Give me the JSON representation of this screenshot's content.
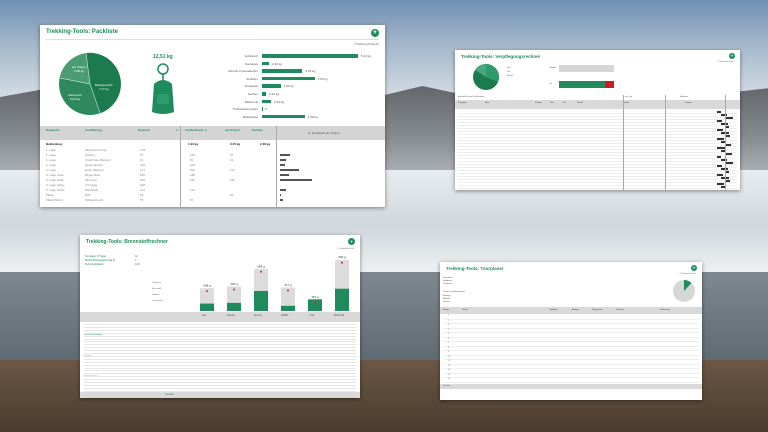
{
  "packliste": {
    "title": "Trekking-Tools: Packliste",
    "credit": "©TrekkingTrails.de",
    "total": "12,51 kg",
    "pie": [
      {
        "label": "Basisgewicht",
        "value": "7,17 kg"
      },
      {
        "label": "Verbrauch",
        "value": "5,34 kg"
      },
      {
        "label": "am Körper",
        "value": "2,59 kg"
      }
    ],
    "bars": [
      {
        "label": "Verbrauch",
        "value": "5,34 kg",
        "kg": 5.34
      },
      {
        "label": "Sonstiges",
        "value": "0,40 kg",
        "kg": 0.4
      },
      {
        "label": "Schuhe & Gamaschen",
        "value": "2,25 kg",
        "kg": 2.25
      },
      {
        "label": "Schlafen",
        "value": "2,93 kg",
        "kg": 2.93
      },
      {
        "label": "Rucksack",
        "value": "1,03 kg",
        "kg": 1.03
      },
      {
        "label": "Kochen",
        "value": "0,23 kg",
        "kg": 0.23
      },
      {
        "label": "Elektronik",
        "value": "0,51 kg",
        "kg": 0.51
      },
      {
        "label": "Trinkwassersystem",
        "value": "0",
        "kg": 0
      },
      {
        "label": "Bekleidung",
        "value": "2,38 kg",
        "kg": 2.38
      }
    ],
    "columns": [
      "Kategorie",
      "Ausführung",
      "Gewicht",
      "#",
      "im Rucksack",
      "#",
      "am Körper",
      "Summe"
    ],
    "category": "Bekleidung",
    "category_totals": [
      "1,93 kg",
      "0,45 kg",
      "2,38 kg"
    ],
    "legend": "im Rucksack  am Körper",
    "rows": [
      {
        "k": "1. Lage",
        "a": "Merinoshirt lang",
        "g": "178"
      },
      {
        "k": "1. Lage",
        "a": "Socken",
        "g": "67",
        "r": "134",
        "b": "67"
      },
      {
        "k": "1. Lage",
        "a": "Unterhose (Merino)",
        "g": "41",
        "r": "82",
        "b": "41"
      },
      {
        "k": "2. Lage",
        "a": "Daunenjacke",
        "g": "100",
        "r": "100"
      },
      {
        "k": "2. Lage",
        "a": "Hose (Merino)",
        "g": "127",
        "r": "254",
        "b": "127"
      },
      {
        "k": "3. Lage Hose",
        "a": "Regenhose",
        "g": "186",
        "r": "186"
      },
      {
        "k": "3. Lage Hose",
        "a": "Zip-Hose",
        "g": "320",
        "r": "320",
        "b": "320"
      },
      {
        "k": "3. Lage Jacke",
        "a": "2,5 Lagig",
        "g": "228"
      },
      {
        "k": "3. Lage Jacke",
        "a": "Windshell",
        "g": "114",
        "r": "114"
      },
      {
        "k": "Mütze",
        "a": "Buff",
        "g": "26",
        "b": "26"
      },
      {
        "k": "Mütze/Schal",
        "a": "Schlauchtuch",
        "g": "57",
        "r": "57"
      }
    ]
  },
  "verpflegung": {
    "title": "Trekking-Tools: Verpflegungsrechner",
    "credit": "©TrekkingTrails.de",
    "legend": [
      "Fett",
      "KH",
      "Eiweiß"
    ],
    "bar_labels": [
      "Bedarf",
      "Ist"
    ],
    "bar_ist_fraction": 0.85,
    "section_left": "Auswahl für eine Trekkingtour",
    "section_mid": "pro Tour",
    "section_right": "Ergebnis",
    "columns": [
      "Kategorie",
      "Wert",
      "Energie",
      "Fett",
      "KH",
      "Eiweiß",
      "Anzahl",
      "Summe"
    ]
  },
  "brennstoff": {
    "title": "Trekking-Tools: Brennstoffrechner",
    "credit": "©TrekkingTrails.de",
    "params": [
      {
        "label": "Tourdauer (# Tage)",
        "value": "10"
      },
      {
        "label": "Bedarf Warmwasser/Tag (l)",
        "value": "2"
      },
      {
        "label": "Sicherheitsfaktor",
        "value": "10%"
      }
    ],
    "legend": [
      "Verbrauch",
      "Brennstoff",
      "Gewicht",
      "Leergewicht"
    ],
    "row_groups": [
      "Brennstoffbedarf",
      "Kocher",
      "Kochsystem"
    ],
    "total_label": "Gesamt",
    "chart_data": {
      "type": "bar",
      "categories": [
        "Gas",
        "Spiritus",
        "Benzin",
        "ESBIT",
        "Holz",
        "Mehrstoff"
      ],
      "series": [
        {
          "values": [
            100,
            110,
            270,
            70,
            157,
            300
          ]
        },
        {
          "values": [
            208,
            220,
            298,
            247,
            0,
            390
          ]
        }
      ],
      "total_labels": [
        "308 g",
        "330 g",
        "568 g",
        "317 g",
        "157 g",
        "690 g"
      ]
    }
  },
  "tourplaner": {
    "title": "Trekking-Tools: Tourplaner",
    "credit": "©TrekkingTrails.de",
    "left_labels": [
      "Startdatum",
      "Enddatum",
      "Tourdauer"
    ],
    "section": "Distanz und Höhenmeter",
    "stats": [
      "Aufstieg",
      "Abstieg",
      "Distanz"
    ],
    "columns": [
      "Etappe",
      "Zielort",
      "Aufstieg",
      "Abstieg",
      "Wegstrecke",
      "Zeitraum",
      "Kommentar"
    ],
    "total_label": "Gesamt",
    "pie_fraction": 0.12
  }
}
